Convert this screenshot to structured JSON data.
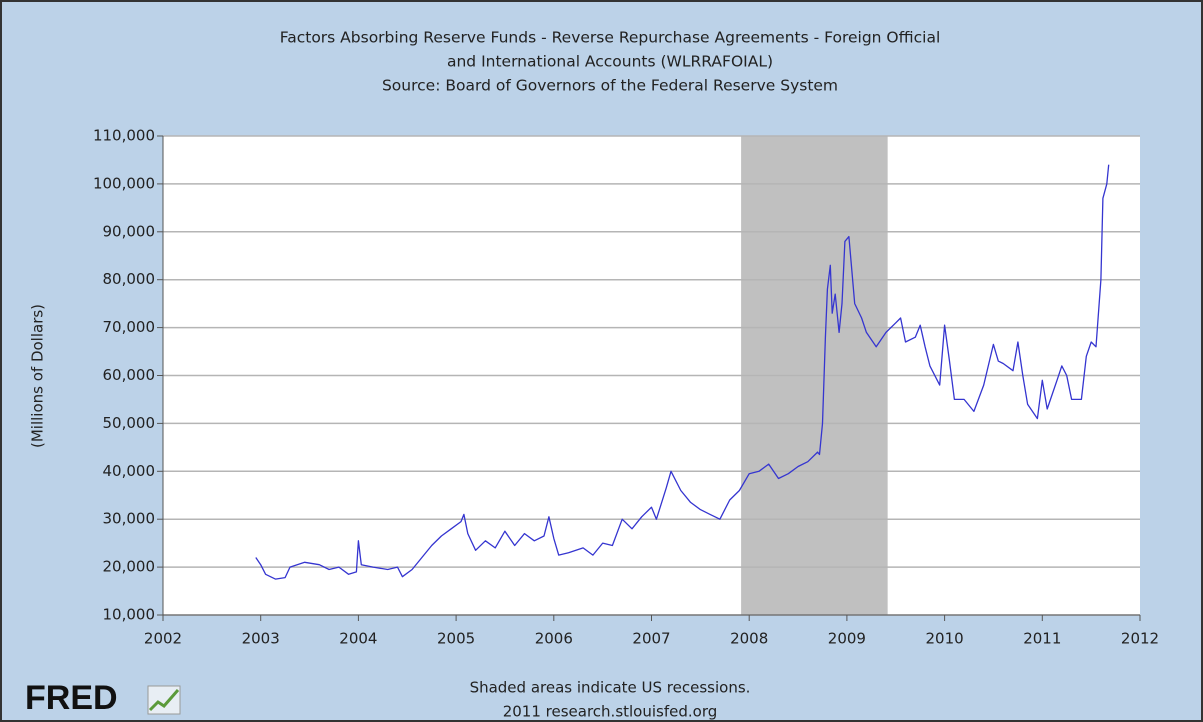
{
  "chart_data": {
    "type": "line",
    "title": [
      "Factors Absorbing Reserve Funds - Reverse Repurchase Agreements - Foreign Official",
      "and International Accounts (WLRRAFOIAL)"
    ],
    "subtitle": "Source: Board of Governors of the Federal Reserve System",
    "ylabel": "(Millions of Dollars)",
    "notes": [
      "Shaded areas indicate US recessions.",
      "2011 research.stlouisfed.org"
    ],
    "logo": "FRED",
    "xlim": [
      2002,
      2012
    ],
    "xticks": [
      2002,
      2003,
      2004,
      2005,
      2006,
      2007,
      2008,
      2009,
      2010,
      2011,
      2012
    ],
    "ylim": [
      10000,
      110000
    ],
    "yticks": [
      {
        "value": 10000,
        "label": "10,000"
      },
      {
        "value": 20000,
        "label": "20,000"
      },
      {
        "value": 30000,
        "label": "30,000"
      },
      {
        "value": 40000,
        "label": "40,000"
      },
      {
        "value": 50000,
        "label": "50,000"
      },
      {
        "value": 60000,
        "label": "60,000"
      },
      {
        "value": 70000,
        "label": "70,000"
      },
      {
        "value": 80000,
        "label": "80,000"
      },
      {
        "value": 90000,
        "label": "90,000"
      },
      {
        "value": 100000,
        "label": "100,000"
      },
      {
        "value": 110000,
        "label": "110,000"
      }
    ],
    "grid": true,
    "recessions": [
      [
        2007.917,
        2009.417
      ]
    ],
    "recession_color": "#c0c0c0",
    "x": [
      2002.95,
      2003.0,
      2003.05,
      2003.15,
      2003.25,
      2003.3,
      2003.45,
      2003.6,
      2003.7,
      2003.8,
      2003.9,
      2003.98,
      2004.0,
      2004.03,
      2004.15,
      2004.3,
      2004.4,
      2004.45,
      2004.55,
      2004.65,
      2004.75,
      2004.85,
      2004.95,
      2005.05,
      2005.08,
      2005.12,
      2005.2,
      2005.3,
      2005.4,
      2005.5,
      2005.6,
      2005.7,
      2005.8,
      2005.9,
      2005.95,
      2006.0,
      2006.05,
      2006.15,
      2006.3,
      2006.4,
      2006.5,
      2006.6,
      2006.7,
      2006.8,
      2006.9,
      2007.0,
      2007.05,
      2007.15,
      2007.2,
      2007.3,
      2007.4,
      2007.5,
      2007.6,
      2007.7,
      2007.8,
      2007.9,
      2008.0,
      2008.1,
      2008.2,
      2008.3,
      2008.4,
      2008.5,
      2008.6,
      2008.7,
      2008.72,
      2008.75,
      2008.78,
      2008.8,
      2008.83,
      2008.85,
      2008.88,
      2008.92,
      2008.95,
      2008.98,
      2009.02,
      2009.08,
      2009.15,
      2009.2,
      2009.3,
      2009.4,
      2009.5,
      2009.55,
      2009.6,
      2009.7,
      2009.75,
      2009.8,
      2009.85,
      2009.95,
      2010.0,
      2010.05,
      2010.1,
      2010.2,
      2010.3,
      2010.4,
      2010.5,
      2010.55,
      2010.6,
      2010.7,
      2010.75,
      2010.8,
      2010.85,
      2010.95,
      2011.0,
      2011.05,
      2011.15,
      2011.2,
      2011.25,
      2011.3,
      2011.4,
      2011.45,
      2011.5,
      2011.55,
      2011.6,
      2011.62,
      2011.66,
      2011.68
    ],
    "series": [
      {
        "name": "WLRRAFOIAL",
        "color": "#3535d0",
        "values": [
          22000,
          20500,
          18500,
          17500,
          17800,
          20000,
          21000,
          20500,
          19500,
          20000,
          18500,
          19000,
          25500,
          20500,
          20000,
          19500,
          20000,
          18000,
          19500,
          22000,
          24500,
          26500,
          28000,
          29500,
          31000,
          27000,
          23500,
          25500,
          24000,
          27500,
          24500,
          27000,
          25500,
          26500,
          30500,
          26000,
          22500,
          23000,
          24000,
          22500,
          25000,
          24500,
          30000,
          28000,
          30500,
          32500,
          30000,
          36500,
          40000,
          36000,
          33500,
          32000,
          31000,
          30000,
          34000,
          36000,
          39500,
          40000,
          41500,
          38500,
          39500,
          41000,
          42000,
          44000,
          43500,
          50000,
          68000,
          78000,
          83000,
          73000,
          77000,
          69000,
          75000,
          88000,
          89000,
          75000,
          72000,
          69000,
          66000,
          69000,
          71000,
          72000,
          67000,
          68000,
          70500,
          66000,
          62000,
          58000,
          70500,
          63000,
          55000,
          55000,
          52500,
          58000,
          66500,
          63000,
          62500,
          61000,
          67000,
          60000,
          54000,
          51000,
          59000,
          53000,
          59000,
          62000,
          60000,
          55000,
          55000,
          64000,
          67000,
          66000,
          80000,
          97000,
          100000,
          104000
        ]
      }
    ]
  }
}
